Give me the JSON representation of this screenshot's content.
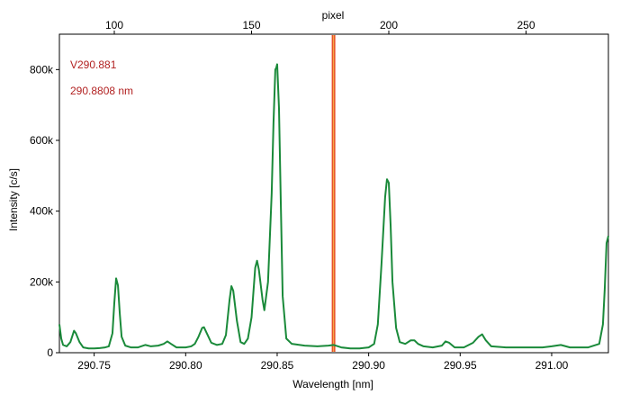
{
  "chart_data": {
    "type": "line",
    "xlabel": "Wavelength [nm]",
    "ylabel": "Intensity [c/s]",
    "top_axis_label": "pixel",
    "xlim": [
      290.731,
      291.031
    ],
    "ylim": [
      0,
      900000
    ],
    "top_axis_range": [
      80,
      280
    ],
    "x_ticks": [
      {
        "value": 290.75,
        "label": "290.75"
      },
      {
        "value": 290.8,
        "label": "290.80"
      },
      {
        "value": 290.85,
        "label": "290.85"
      },
      {
        "value": 290.9,
        "label": "290.90"
      },
      {
        "value": 290.95,
        "label": "290.95"
      },
      {
        "value": 291.0,
        "label": "291.00"
      }
    ],
    "y_ticks": [
      {
        "value": 0,
        "label": "0"
      },
      {
        "value": 200000,
        "label": "200k"
      },
      {
        "value": 400000,
        "label": "400k"
      },
      {
        "value": 600000,
        "label": "600k"
      },
      {
        "value": 800000,
        "label": "800k"
      }
    ],
    "top_ticks": [
      {
        "value": 100,
        "label": "100"
      },
      {
        "value": 150,
        "label": "150"
      },
      {
        "value": 200,
        "label": "200"
      },
      {
        "value": 250,
        "label": "250"
      }
    ],
    "marker": {
      "x": 290.8808,
      "color": "#e8522a"
    },
    "annotations": [
      {
        "text": "V290.881",
        "color": "#b22222"
      },
      {
        "text": "290.8808 nm",
        "color": "#b22222"
      }
    ],
    "grid": false,
    "series": [
      {
        "color": "#1a8a3a",
        "points": [
          [
            290.731,
            80000
          ],
          [
            290.732,
            40000
          ],
          [
            290.733,
            22000
          ],
          [
            290.735,
            18000
          ],
          [
            290.737,
            30000
          ],
          [
            290.739,
            62000
          ],
          [
            290.74,
            55000
          ],
          [
            290.742,
            30000
          ],
          [
            290.744,
            15000
          ],
          [
            290.747,
            12000
          ],
          [
            290.75,
            12000
          ],
          [
            290.753,
            13000
          ],
          [
            290.756,
            15000
          ],
          [
            290.758,
            18000
          ],
          [
            290.76,
            55000
          ],
          [
            290.761,
            140000
          ],
          [
            290.762,
            210000
          ],
          [
            290.763,
            190000
          ],
          [
            290.764,
            110000
          ],
          [
            290.765,
            45000
          ],
          [
            290.767,
            20000
          ],
          [
            290.77,
            15000
          ],
          [
            290.774,
            15000
          ],
          [
            290.778,
            22000
          ],
          [
            290.781,
            18000
          ],
          [
            290.785,
            20000
          ],
          [
            290.788,
            25000
          ],
          [
            290.79,
            32000
          ],
          [
            290.792,
            25000
          ],
          [
            290.795,
            15000
          ],
          [
            290.8,
            15000
          ],
          [
            290.803,
            18000
          ],
          [
            290.805,
            25000
          ],
          [
            290.807,
            45000
          ],
          [
            290.809,
            70000
          ],
          [
            290.81,
            72000
          ],
          [
            290.812,
            50000
          ],
          [
            290.814,
            28000
          ],
          [
            290.817,
            22000
          ],
          [
            290.82,
            25000
          ],
          [
            290.822,
            50000
          ],
          [
            290.824,
            150000
          ],
          [
            290.825,
            188000
          ],
          [
            290.826,
            175000
          ],
          [
            290.828,
            90000
          ],
          [
            290.83,
            30000
          ],
          [
            290.832,
            25000
          ],
          [
            290.834,
            40000
          ],
          [
            290.836,
            100000
          ],
          [
            290.838,
            240000
          ],
          [
            290.839,
            260000
          ],
          [
            290.84,
            235000
          ],
          [
            290.842,
            150000
          ],
          [
            290.843,
            120000
          ],
          [
            290.845,
            200000
          ],
          [
            290.847,
            450000
          ],
          [
            290.848,
            650000
          ],
          [
            290.849,
            800000
          ],
          [
            290.8495,
            805000
          ],
          [
            290.85,
            815000
          ],
          [
            290.851,
            690000
          ],
          [
            290.852,
            420000
          ],
          [
            290.853,
            160000
          ],
          [
            290.855,
            40000
          ],
          [
            290.858,
            25000
          ],
          [
            290.865,
            20000
          ],
          [
            290.872,
            18000
          ],
          [
            290.878,
            20000
          ],
          [
            290.8808,
            22000
          ],
          [
            290.885,
            15000
          ],
          [
            290.89,
            12000
          ],
          [
            290.895,
            12000
          ],
          [
            290.9,
            15000
          ],
          [
            290.903,
            25000
          ],
          [
            290.905,
            80000
          ],
          [
            290.907,
            250000
          ],
          [
            290.909,
            440000
          ],
          [
            290.91,
            490000
          ],
          [
            290.911,
            480000
          ],
          [
            290.912,
            360000
          ],
          [
            290.913,
            200000
          ],
          [
            290.915,
            70000
          ],
          [
            290.917,
            30000
          ],
          [
            290.92,
            25000
          ],
          [
            290.923,
            35000
          ],
          [
            290.925,
            35000
          ],
          [
            290.927,
            25000
          ],
          [
            290.93,
            18000
          ],
          [
            290.935,
            15000
          ],
          [
            290.94,
            20000
          ],
          [
            290.942,
            32000
          ],
          [
            290.944,
            28000
          ],
          [
            290.947,
            15000
          ],
          [
            290.952,
            15000
          ],
          [
            290.957,
            28000
          ],
          [
            290.96,
            45000
          ],
          [
            290.962,
            52000
          ],
          [
            290.964,
            35000
          ],
          [
            290.967,
            18000
          ],
          [
            290.975,
            15000
          ],
          [
            290.985,
            15000
          ],
          [
            290.995,
            15000
          ],
          [
            291.0,
            18000
          ],
          [
            291.005,
            22000
          ],
          [
            291.01,
            15000
          ],
          [
            291.02,
            15000
          ],
          [
            291.026,
            25000
          ],
          [
            291.028,
            80000
          ],
          [
            291.029,
            180000
          ],
          [
            291.03,
            310000
          ],
          [
            291.031,
            330000
          ]
        ]
      }
    ]
  }
}
